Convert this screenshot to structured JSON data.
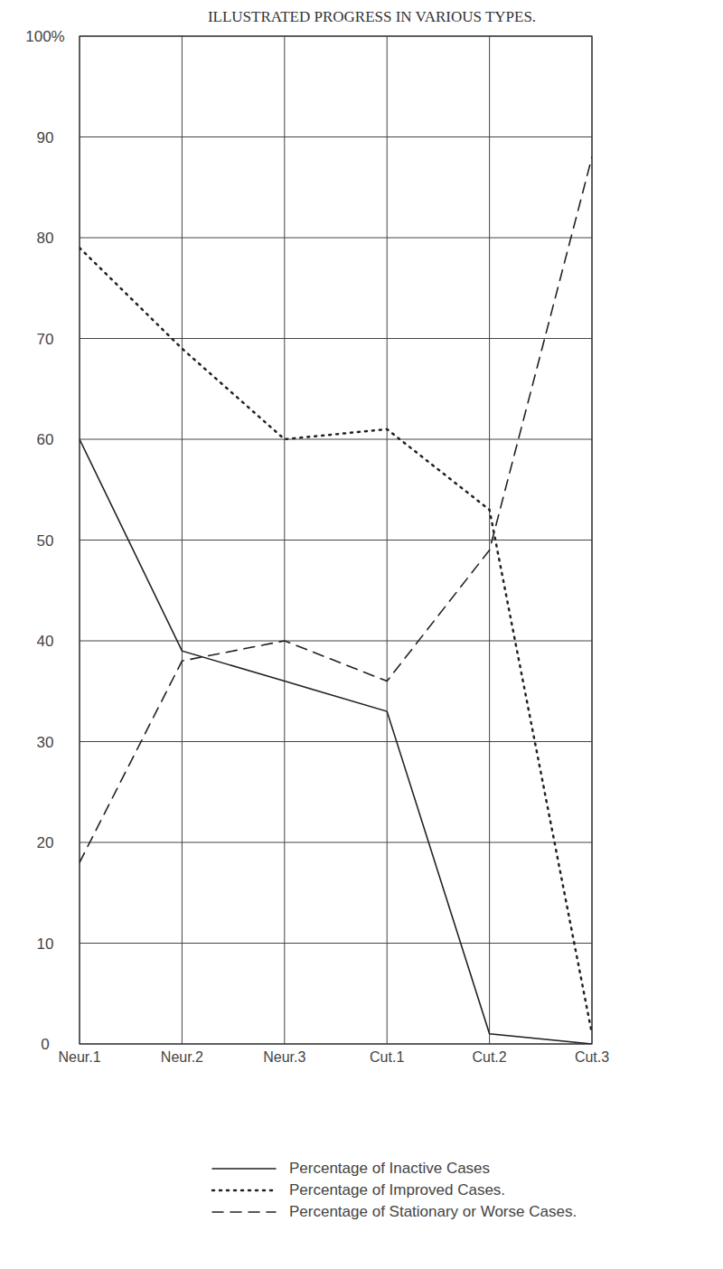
{
  "chart_data": {
    "type": "line",
    "title": "ILLUSTRATED PROGRESS IN VARIOUS TYPES.",
    "categories": [
      "Neur.1",
      "Neur.2",
      "Neur.3",
      "Cut.1",
      "Cut.2",
      "Cut.3"
    ],
    "series": [
      {
        "name": "Percentage of Inactive Cases",
        "color": "#222222",
        "line_style": "solid",
        "values": [
          60,
          39,
          36,
          33,
          1,
          0
        ]
      },
      {
        "name": "Percentage of Improved Cases.",
        "color": "#222222",
        "line_style": "dotted",
        "values": [
          79,
          69,
          60,
          61,
          53,
          1
        ]
      },
      {
        "name": "Percentage of Stationary or Worse Cases.",
        "color": "#222222",
        "line_style": "dashed",
        "values": [
          18,
          38,
          40,
          36,
          49,
          88
        ]
      }
    ],
    "ylim": [
      0,
      100
    ],
    "yticks": [
      0,
      10,
      20,
      30,
      40,
      50,
      60,
      70,
      80,
      90,
      {
        "value": 100,
        "label": "100%"
      }
    ],
    "grid": true
  }
}
